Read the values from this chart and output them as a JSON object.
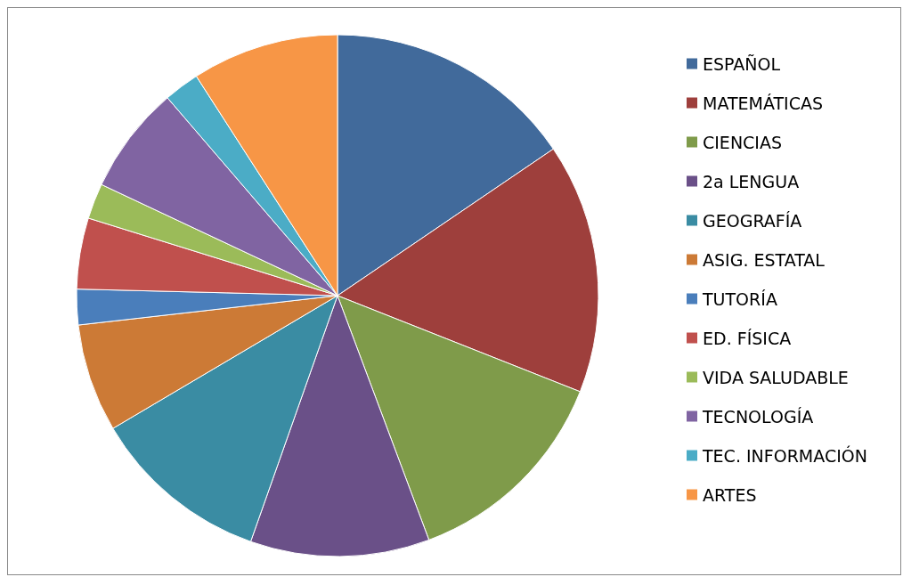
{
  "chart_data": {
    "type": "pie",
    "categories": [
      "ESPAÑOL",
      "MATEMÁTICAS",
      "CIENCIAS",
      "2a LENGUA",
      "GEOGRAFÍA",
      "ASIG. ESTATAL",
      "TUTORÍA",
      "ED. FÍSICA",
      "VIDA SALUDABLE",
      "TECNOLOGÍA",
      "TEC. INFORMACIÓN",
      "ARTES"
    ],
    "values": [
      15.5,
      15.5,
      13.3,
      11.1,
      11.1,
      6.7,
      2.2,
      4.4,
      2.2,
      6.7,
      2.2,
      9.1
    ],
    "colors": [
      "#416a9b",
      "#9e3f3c",
      "#7f9b4a",
      "#6a5088",
      "#3a8ca3",
      "#cc7a36",
      "#4a7ebb",
      "#c0504d",
      "#9bbb59",
      "#8064a2",
      "#4bacc6",
      "#f79646"
    ],
    "legend": "right"
  }
}
